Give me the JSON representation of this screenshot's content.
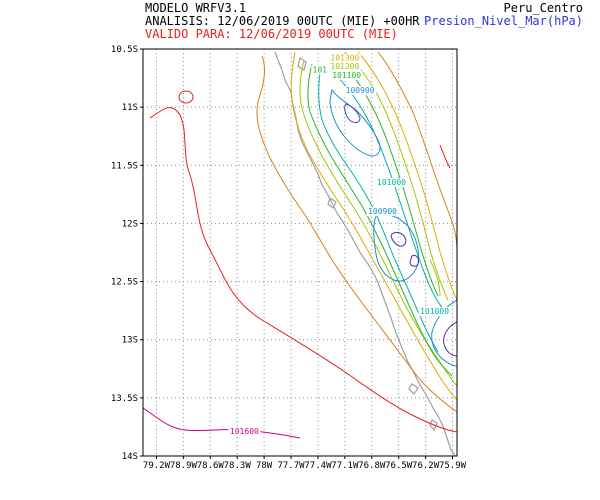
{
  "header": {
    "model": "MODELO WRFV3.1",
    "analysis": "ANALISIS: 12/06/2019 00UTC (MIE) +00HR",
    "valid": "VALIDO PARA: 12/06/2019 00UTC (MIE)",
    "domain": "Peru_Centro",
    "variable": "Presion_Nivel_Mar(hPa)",
    "colors": {
      "text": "#000000",
      "valid": "#e8201c",
      "variable": "#2a35e0"
    }
  },
  "map": {
    "lat_range": [
      -14.0,
      -10.5
    ],
    "lon_range": [
      -79.35,
      -75.85
    ],
    "lat_labels": [
      "10.5S",
      "11S",
      "11.5S",
      "12S",
      "12.5S",
      "13S",
      "13.5S",
      "14S"
    ],
    "lon_labels": [
      "79.2W",
      "78.9W",
      "78.6W",
      "78.3W",
      "78W",
      "77.7W",
      "77.4W",
      "77.1W",
      "76.8W",
      "76.5W",
      "76.2W",
      "75.9W"
    ],
    "grid": "dotted",
    "coastline_color": "#a0a0a0"
  },
  "contour_labels": [
    {
      "text": "101300",
      "color": "#d8b000",
      "lon": -77.1,
      "lat": -10.6
    },
    {
      "text": "101200",
      "color": "#a0c800",
      "lon": -77.1,
      "lat": -10.67
    },
    {
      "text": "101100",
      "color": "#28b428",
      "lon": -77.08,
      "lat": -10.75
    },
    {
      "text": "101",
      "color": "#28b428",
      "lon": -77.38,
      "lat": -10.7
    },
    {
      "text": "100900",
      "color": "#1e8cc8",
      "lon": -76.93,
      "lat": -10.88
    },
    {
      "text": "101000",
      "color": "#00b4a0",
      "lon": -76.58,
      "lat": -11.67
    },
    {
      "text": "100900",
      "color": "#1e8cc8",
      "lon": -76.68,
      "lat": -11.92
    },
    {
      "text": "101000",
      "color": "#00b4a0",
      "lon": -76.1,
      "lat": -12.78
    },
    {
      "text": "101600",
      "color": "#c8008c",
      "lon": -78.22,
      "lat": -13.81
    }
  ]
}
